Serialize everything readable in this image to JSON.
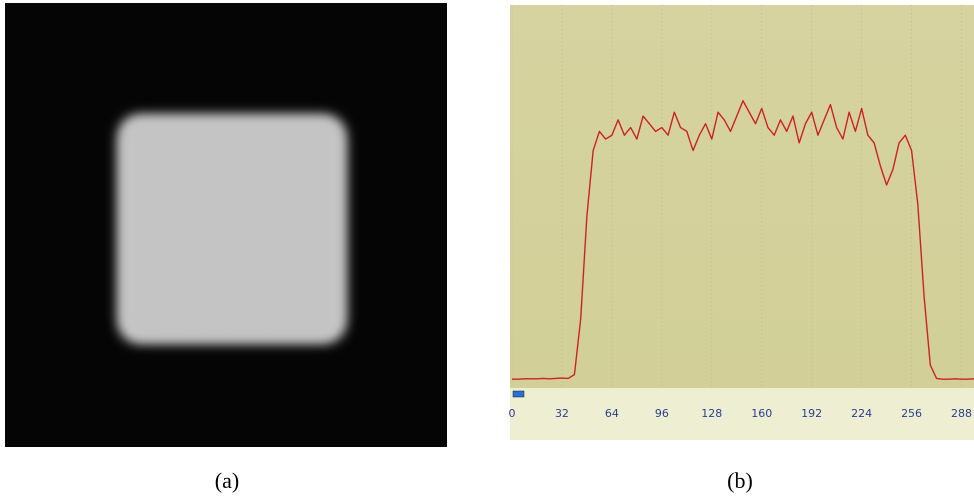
{
  "captions": [
    "(a)",
    "(b)"
  ],
  "chart_data": {
    "type": "line",
    "x": [
      0,
      4,
      8,
      12,
      16,
      20,
      24,
      28,
      32,
      36,
      40,
      44,
      48,
      52,
      56,
      60,
      64,
      68,
      72,
      76,
      80,
      84,
      88,
      92,
      96,
      100,
      104,
      108,
      112,
      116,
      120,
      124,
      128,
      132,
      136,
      140,
      144,
      148,
      152,
      156,
      160,
      164,
      168,
      172,
      176,
      180,
      184,
      188,
      192,
      196,
      200,
      204,
      208,
      212,
      216,
      220,
      224,
      228,
      232,
      236,
      240,
      244,
      248,
      252,
      256,
      260,
      264,
      268,
      272,
      276,
      280,
      284,
      288,
      292,
      296
    ],
    "series": [
      {
        "color": "#cc2222",
        "values": [
          2.3,
          2.3,
          2.4,
          2.4,
          2.4,
          2.5,
          2.4,
          2.5,
          2.6,
          2.5,
          3.5,
          18,
          45,
          62,
          67,
          65,
          66,
          70,
          66,
          68,
          65,
          71,
          69,
          67,
          68,
          66,
          72,
          68,
          67,
          62,
          66,
          69,
          65,
          72,
          70,
          67,
          71,
          75,
          72,
          69,
          73,
          68,
          66,
          70,
          67,
          71,
          64,
          69,
          72,
          66,
          70,
          74,
          68,
          65,
          72,
          67,
          73,
          66,
          64,
          58,
          53,
          57,
          64,
          66,
          62,
          48,
          24,
          6,
          2.5,
          2.3,
          2.3,
          2.4,
          2.3,
          2.3,
          2.4
        ]
      }
    ],
    "xlim": [
      0,
      296
    ],
    "ylim": [
      0,
      100
    ],
    "xticks": [
      0,
      32,
      64,
      96,
      128,
      160,
      192,
      224,
      256,
      288
    ],
    "grid": true
  }
}
